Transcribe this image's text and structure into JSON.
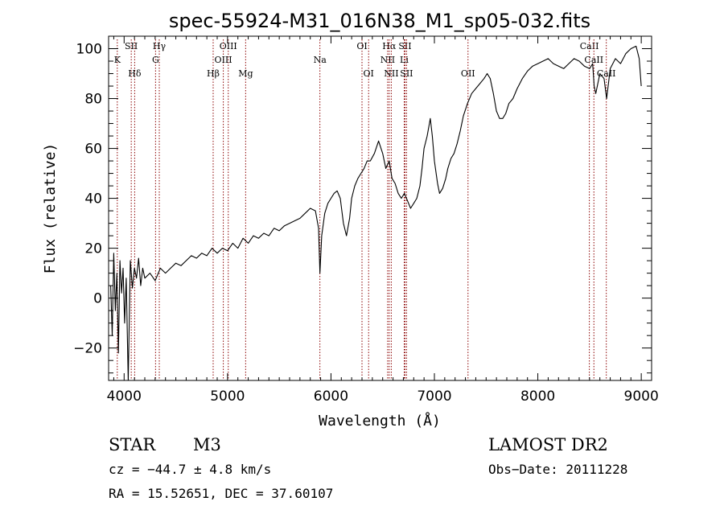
{
  "chart_data": {
    "type": "line",
    "title": "spec-55924-M31_016N38_M1_sp05-032.fits",
    "xlabel": "Wavelength (Å)",
    "ylabel": "Flux (relative)",
    "xlim": [
      3850,
      9100
    ],
    "ylim": [
      -33,
      105
    ],
    "x_ticks": [
      4000,
      5000,
      6000,
      7000,
      8000,
      9000
    ],
    "y_ticks": [
      -20,
      0,
      20,
      40,
      60,
      80,
      100
    ],
    "grid": false,
    "legend": "none",
    "line_color": "#000000",
    "marker_color": "#8b0000",
    "series": [
      {
        "x": [
          3870,
          3885,
          3900,
          3915,
          3930,
          3945,
          3960,
          3975,
          3990,
          4005,
          4020,
          4040,
          4060,
          4080,
          4100,
          4120,
          4140,
          4160,
          4180,
          4200,
          4250,
          4300,
          4350,
          4400,
          4450,
          4500,
          4550,
          4600,
          4650,
          4700,
          4750,
          4800,
          4850,
          4900,
          4950,
          5000,
          5050,
          5100,
          5150,
          5200,
          5250,
          5300,
          5350,
          5400,
          5450,
          5500,
          5550,
          5600,
          5650,
          5700,
          5750,
          5800,
          5850,
          5880,
          5893,
          5910,
          5940,
          5970,
          6000,
          6030,
          6060,
          6090,
          6120,
          6150,
          6180,
          6200,
          6230,
          6260,
          6290,
          6320,
          6350,
          6380,
          6420,
          6460,
          6500,
          6530,
          6563,
          6590,
          6620,
          6650,
          6680,
          6710,
          6740,
          6770,
          6800,
          6830,
          6860,
          6880,
          6900,
          6930,
          6960,
          6980,
          7000,
          7030,
          7050,
          7080,
          7110,
          7130,
          7160,
          7190,
          7220,
          7250,
          7280,
          7320,
          7360,
          7400,
          7440,
          7480,
          7510,
          7540,
          7570,
          7600,
          7630,
          7660,
          7690,
          7720,
          7760,
          7800,
          7850,
          7900,
          7950,
          8000,
          8050,
          8100,
          8150,
          8200,
          8250,
          8300,
          8350,
          8400,
          8450,
          8500,
          8530,
          8545,
          8560,
          8600,
          8640,
          8665,
          8700,
          8750,
          8800,
          8850,
          8900,
          8950,
          8980,
          9000
        ],
        "y": [
          5,
          -15,
          18,
          -5,
          10,
          -22,
          15,
          2,
          12,
          -10,
          8,
          -33,
          15,
          4,
          12,
          8,
          16,
          5,
          12,
          8,
          10,
          7,
          12,
          10,
          12,
          14,
          13,
          15,
          17,
          16,
          18,
          17,
          20,
          18,
          20,
          19,
          22,
          20,
          24,
          22,
          25,
          24,
          26,
          25,
          28,
          27,
          29,
          30,
          31,
          32,
          34,
          36,
          35,
          28,
          10,
          25,
          34,
          38,
          40,
          42,
          43,
          40,
          30,
          25,
          32,
          40,
          45,
          48,
          50,
          52,
          55,
          55,
          58,
          63,
          58,
          52,
          55,
          48,
          46,
          42,
          40,
          42,
          39,
          36,
          38,
          40,
          45,
          52,
          60,
          65,
          72,
          65,
          55,
          46,
          42,
          44,
          48,
          52,
          56,
          58,
          62,
          67,
          73,
          78,
          82,
          84,
          86,
          88,
          90,
          88,
          82,
          75,
          72,
          72,
          74,
          78,
          80,
          84,
          88,
          91,
          93,
          94,
          95,
          96,
          94,
          93,
          92,
          94,
          96,
          95,
          93,
          92,
          94,
          85,
          82,
          90,
          88,
          80,
          92,
          96,
          94,
          98,
          100,
          101,
          96,
          85
        ]
      }
    ],
    "line_markers": [
      {
        "label": "K",
        "x": 3934,
        "row": 1
      },
      {
        "label": "SII",
        "x": 4069,
        "row": 0
      },
      {
        "label": "Hδ",
        "x": 4102,
        "row": 2
      },
      {
        "label": "Hγ",
        "x": 4340,
        "row": 0
      },
      {
        "label": "G",
        "x": 4304,
        "row": 1
      },
      {
        "label": "Hβ",
        "x": 4861,
        "row": 2
      },
      {
        "label": "OIII",
        "x": 5007,
        "row": 0
      },
      {
        "label": "OIII",
        "x": 4959,
        "row": 1
      },
      {
        "label": "Mg",
        "x": 5175,
        "row": 2
      },
      {
        "label": "Na",
        "x": 5893,
        "row": 1
      },
      {
        "label": "OI",
        "x": 6300,
        "row": 0
      },
      {
        "label": "OI",
        "x": 6364,
        "row": 2
      },
      {
        "label": "Hα",
        "x": 6563,
        "row": 0
      },
      {
        "label": "SII",
        "x": 6716,
        "row": 0
      },
      {
        "label": "NII",
        "x": 6548,
        "row": 1
      },
      {
        "label": "Li",
        "x": 6708,
        "row": 1
      },
      {
        "label": "NII",
        "x": 6583,
        "row": 2
      },
      {
        "label": "SII",
        "x": 6731,
        "row": 2
      },
      {
        "label": "OII",
        "x": 7325,
        "row": 2
      },
      {
        "label": "CaII",
        "x": 8498,
        "row": 0
      },
      {
        "label": "CaII",
        "x": 8542,
        "row": 1
      },
      {
        "label": "CaII",
        "x": 8662,
        "row": 2
      }
    ]
  },
  "info": {
    "object_class": "STAR",
    "subclass": "M3",
    "survey": "LAMOST DR2",
    "cz": "cz = −44.7 ± 4.8 km/s",
    "obs_date": "Obs−Date: 20111228",
    "coords": "RA =  15.52651, DEC =  37.60107"
  }
}
